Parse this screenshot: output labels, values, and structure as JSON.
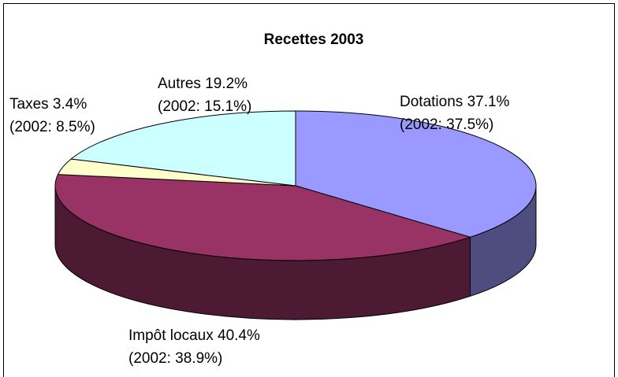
{
  "chart_data": {
    "type": "pie",
    "title": "Recettes 2003",
    "categories": [
      "Dotations",
      "Impôt locaux",
      "Taxes",
      "Autres"
    ],
    "values": [
      37.1,
      40.4,
      3.4,
      19.2
    ],
    "value_labels": [
      "37.1%",
      "40.4%",
      "3.4%",
      "19.2%"
    ],
    "annotations": [
      "(2002: 37.5%)",
      "(2002: 38.9%)",
      "(2002: 8.5%)",
      "(2002: 15.1%)"
    ],
    "colors": [
      "#9999ff",
      "#993366",
      "#ffffcc",
      "#ccffff"
    ],
    "side_colors": [
      "#4d4d80",
      "#4d1a33",
      "#80806a",
      "#6a8080"
    ]
  }
}
